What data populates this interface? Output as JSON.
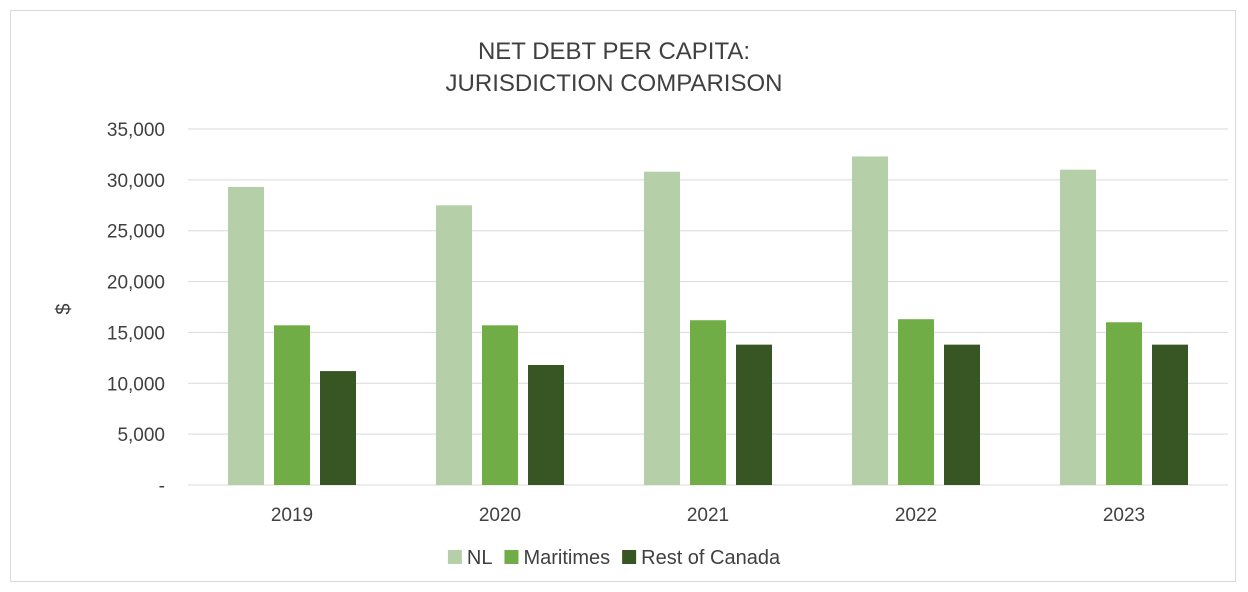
{
  "chart_data": {
    "type": "bar",
    "title_lines": [
      "NET DEBT PER CAPITA:",
      "JURISDICTION COMPARISON"
    ],
    "xlabel": "",
    "ylabel": "$",
    "categories": [
      "2019",
      "2020",
      "2021",
      "2022",
      "2023"
    ],
    "ylim": [
      0,
      35000
    ],
    "y_ticks": [
      0,
      5000,
      10000,
      15000,
      20000,
      25000,
      30000,
      35000
    ],
    "y_tick_labels": [
      "-",
      "5,000",
      "10,000",
      "15,000",
      "20,000",
      "25,000",
      "30,000",
      "35,000"
    ],
    "grid": true,
    "legend_position": "bottom",
    "series": [
      {
        "name": "NL",
        "color": "#b5d0a8",
        "values": [
          29300,
          27500,
          30800,
          32300,
          31000
        ]
      },
      {
        "name": "Maritimes",
        "color": "#70ad47",
        "values": [
          15700,
          15700,
          16200,
          16300,
          16000
        ]
      },
      {
        "name": "Rest of Canada",
        "color": "#375623",
        "values": [
          11200,
          11800,
          13800,
          13800,
          13800
        ]
      }
    ]
  }
}
